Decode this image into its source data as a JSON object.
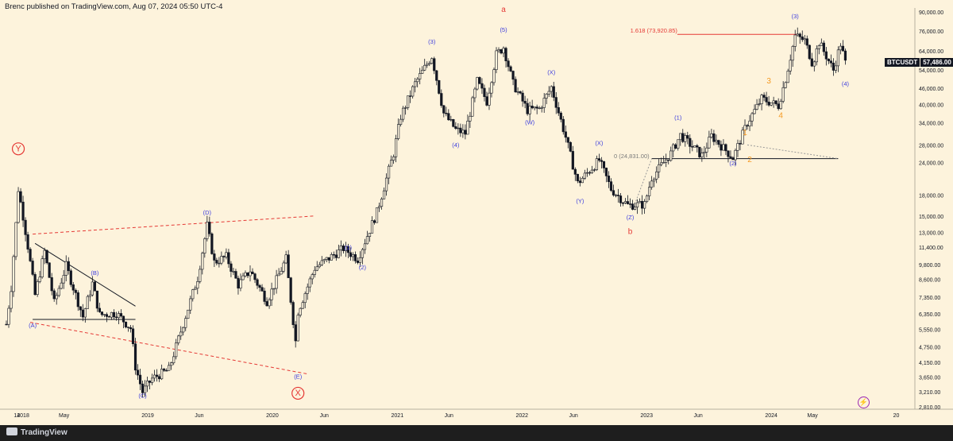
{
  "header": {
    "text": "Brenc published on TradingView.com, Aug 07, 2024 05:50 UTC-4"
  },
  "footer": {
    "brand": "TradingView"
  },
  "ticker": {
    "symbol": "BTCUSDT",
    "price": "57,486.00"
  },
  "colors": {
    "background": "#fdf3dc",
    "candle": "#131722",
    "wave_purple": "#3d3dde",
    "wave_red": "#e53935",
    "wave_orange": "#f59a23",
    "fib_line": "#e53935"
  },
  "chart_data": {
    "type": "candlestick",
    "title": "",
    "scale": "log",
    "ylim": [
      2810,
      90000
    ],
    "y_ticks": [
      "90,000.00",
      "76,000.00",
      "64,000.00",
      "54,000.00",
      "46,000.00",
      "40,000.00",
      "34,000.00",
      "28,000.00",
      "24,000.00",
      "18,000.00",
      "15,000.00",
      "13,000.00",
      "11,400.00",
      "9,800.00",
      "8,600.00",
      "7,350.00",
      "6,350.00",
      "5,550.00",
      "4,750.00",
      "4,150.00",
      "3,650.00",
      "3,210.00",
      "2,810.00"
    ],
    "y_tick_values": [
      90000,
      76000,
      64000,
      54000,
      46000,
      40000,
      34000,
      28000,
      24000,
      18000,
      15000,
      13000,
      11400,
      9800,
      8600,
      7350,
      6350,
      5550,
      4750,
      4150,
      3650,
      3210,
      2810
    ],
    "x_ticks": [
      "14",
      "2018",
      "May",
      "2019",
      "Jun",
      "2020",
      "Jun",
      "2021",
      "Jun",
      "2022",
      "Jun",
      "2023",
      "Jun",
      "2024",
      "May",
      "20"
    ],
    "x_tick_dates": [
      "2017-12-14",
      "2018-01-01",
      "2018-05-01",
      "2019-01-01",
      "2019-06-01",
      "2020-01-01",
      "2020-06-01",
      "2021-01-01",
      "2021-06-01",
      "2022-01-01",
      "2022-06-01",
      "2023-01-01",
      "2023-06-01",
      "2024-01-01",
      "2024-05-01",
      "2025-01-01"
    ],
    "xlim": [
      "2017-11-13",
      "2025-02-20"
    ],
    "series": [
      {
        "type": "weekly-candles (approximate price path, weekly closes)",
        "points": [
          [
            "2017-11-13",
            5800
          ],
          [
            "2017-11-27",
            8000
          ],
          [
            "2017-12-11",
            14000
          ],
          [
            "2017-12-18",
            19000
          ],
          [
            "2018-01-01",
            15000
          ],
          [
            "2018-01-15",
            11500
          ],
          [
            "2018-02-05",
            7500
          ],
          [
            "2018-03-05",
            11000
          ],
          [
            "2018-04-02",
            7000
          ],
          [
            "2018-05-07",
            9700
          ],
          [
            "2018-06-25",
            6200
          ],
          [
            "2018-07-23",
            8300
          ],
          [
            "2018-08-13",
            6300
          ],
          [
            "2018-10-01",
            6400
          ],
          [
            "2018-11-12",
            5600
          ],
          [
            "2018-11-26",
            4000
          ],
          [
            "2018-12-17",
            3200
          ],
          [
            "2019-01-14",
            3600
          ],
          [
            "2019-03-04",
            3900
          ],
          [
            "2019-04-01",
            5100
          ],
          [
            "2019-05-27",
            8700
          ],
          [
            "2019-06-24",
            13800
          ],
          [
            "2019-07-15",
            10000
          ],
          [
            "2019-08-19",
            10500
          ],
          [
            "2019-09-23",
            8200
          ],
          [
            "2019-10-28",
            9300
          ],
          [
            "2019-12-16",
            7100
          ],
          [
            "2020-02-10",
            10300
          ],
          [
            "2020-03-09",
            5000
          ],
          [
            "2020-03-16",
            6500
          ],
          [
            "2020-05-04",
            9500
          ],
          [
            "2020-07-27",
            11300
          ],
          [
            "2020-09-07",
            10300
          ],
          [
            "2020-11-02",
            15500
          ],
          [
            "2020-12-21",
            26000
          ],
          [
            "2021-01-11",
            36000
          ],
          [
            "2021-02-22",
            48000
          ],
          [
            "2021-04-12",
            61000
          ],
          [
            "2021-05-17",
            37000
          ],
          [
            "2021-06-21",
            32000
          ],
          [
            "2021-07-19",
            31000
          ],
          [
            "2021-08-23",
            49000
          ],
          [
            "2021-09-20",
            41000
          ],
          [
            "2021-10-18",
            62000
          ],
          [
            "2021-11-08",
            66000
          ],
          [
            "2021-12-06",
            48000
          ],
          [
            "2022-01-17",
            38000
          ],
          [
            "2022-02-21",
            38500
          ],
          [
            "2022-03-28",
            46500
          ],
          [
            "2022-05-09",
            30000
          ],
          [
            "2022-06-13",
            20000
          ],
          [
            "2022-08-15",
            24500
          ],
          [
            "2022-09-19",
            19000
          ],
          [
            "2022-11-07",
            16500
          ],
          [
            "2022-12-26",
            16600
          ],
          [
            "2023-01-16",
            21000
          ],
          [
            "2023-03-13",
            26000
          ],
          [
            "2023-04-10",
            30500
          ],
          [
            "2023-06-12",
            25500
          ],
          [
            "2023-07-10",
            30300
          ],
          [
            "2023-09-11",
            25000
          ],
          [
            "2023-10-23",
            34000
          ],
          [
            "2023-12-04",
            42000
          ],
          [
            "2024-01-22",
            39500
          ],
          [
            "2024-02-12",
            50000
          ],
          [
            "2024-03-11",
            73000
          ],
          [
            "2024-04-08",
            70000
          ],
          [
            "2024-05-01",
            57000
          ],
          [
            "2024-05-20",
            69000
          ],
          [
            "2024-07-01",
            54000
          ],
          [
            "2024-07-22",
            68000
          ],
          [
            "2024-08-05",
            57486
          ]
        ]
      }
    ],
    "annotations": [
      {
        "text": "Y",
        "date": "2017-12-18",
        "price": 26500,
        "color": "#e53935",
        "circle": true
      },
      {
        "text": "X",
        "date": "2020-03-16",
        "price": 3100,
        "color": "#e53935",
        "circle": true
      },
      {
        "text": "a",
        "date": "2021-11-08",
        "price": 90000,
        "color": "#e53935"
      },
      {
        "text": "b",
        "date": "2022-11-14",
        "price": 12800,
        "color": "#e53935"
      },
      {
        "text": "(A)",
        "date": "2018-01-29",
        "price": 5650,
        "color": "#3d3dde"
      },
      {
        "text": "(B)",
        "date": "2018-07-30",
        "price": 8950,
        "color": "#3d3dde"
      },
      {
        "text": "(C)",
        "date": "2018-12-17",
        "price": 3050,
        "color": "#3d3dde"
      },
      {
        "text": "(D)",
        "date": "2019-06-24",
        "price": 15200,
        "color": "#3d3dde"
      },
      {
        "text": "(E)",
        "date": "2020-03-16",
        "price": 3600,
        "color": "#3d3dde"
      },
      {
        "text": "(1)",
        "date": "2020-08-10",
        "price": 11200,
        "color": "#3d3dde"
      },
      {
        "text": "(2)",
        "date": "2020-09-21",
        "price": 9400,
        "color": "#3d3dde"
      },
      {
        "text": "(3)",
        "date": "2021-04-12",
        "price": 68000,
        "color": "#3d3dde"
      },
      {
        "text": "(4)",
        "date": "2021-06-21",
        "price": 27500,
        "color": "#3d3dde"
      },
      {
        "text": "(5)",
        "date": "2021-11-08",
        "price": 75500,
        "color": "#3d3dde"
      },
      {
        "text": "(W)",
        "date": "2022-01-24",
        "price": 33500,
        "color": "#3d3dde"
      },
      {
        "text": "(X)",
        "date": "2022-03-28",
        "price": 52000,
        "color": "#3d3dde"
      },
      {
        "text": "(Y)",
        "date": "2022-06-20",
        "price": 16800,
        "color": "#3d3dde"
      },
      {
        "text": "(X)",
        "date": "2022-08-15",
        "price": 28000,
        "color": "#3d3dde"
      },
      {
        "text": "(Z)",
        "date": "2022-11-14",
        "price": 14600,
        "color": "#3d3dde"
      },
      {
        "text": "(1)",
        "date": "2023-04-03",
        "price": 35000,
        "color": "#3d3dde"
      },
      {
        "text": "(2)",
        "date": "2023-09-11",
        "price": 23400,
        "color": "#3d3dde"
      },
      {
        "text": "(3)",
        "date": "2024-03-11",
        "price": 85000,
        "color": "#3d3dde"
      },
      {
        "text": "(4)",
        "date": "2024-08-05",
        "price": 47000,
        "color": "#3d3dde"
      },
      {
        "text": "1",
        "date": "2023-10-16",
        "price": 30500,
        "color": "#f59a23"
      },
      {
        "text": "2",
        "date": "2023-10-30",
        "price": 24100,
        "color": "#f59a23"
      },
      {
        "text": "3",
        "date": "2023-12-25",
        "price": 48000,
        "color": "#f59a23"
      },
      {
        "text": "4",
        "date": "2024-01-29",
        "price": 35500,
        "color": "#f59a23"
      },
      {
        "text": "1.618 (73,920.85)",
        "date": "2023-04-01",
        "price": 75200,
        "color": "#e53935"
      },
      {
        "text": "0 (24,831.00)",
        "date": "2023-01-09",
        "price": 24900,
        "color": "#7a7a7a"
      }
    ],
    "lines": [
      {
        "name": "triangle-upper",
        "from": [
          "2018-01-29",
          12800
        ],
        "to": [
          "2020-05-01",
          15000
        ],
        "style": "dashed",
        "color": "#e53935"
      },
      {
        "name": "triangle-lower",
        "from": [
          "2018-01-22",
          5900
        ],
        "to": [
          "2020-04-13",
          3750
        ],
        "style": "dashed",
        "color": "#e53935"
      },
      {
        "name": "pennant-top",
        "from": [
          "2018-02-05",
          11800
        ],
        "to": [
          "2018-11-26",
          6800
        ],
        "style": "solid",
        "color": "#131722"
      },
      {
        "name": "pennant-bottom",
        "from": [
          "2018-01-29",
          6050
        ],
        "to": [
          "2018-11-26",
          6050
        ],
        "style": "solid",
        "color": "#131722"
      },
      {
        "name": "fib-1618",
        "from": [
          "2023-04-01",
          73920
        ],
        "to": [
          "2024-03-18",
          73920
        ],
        "style": "solid",
        "color": "#e53935"
      },
      {
        "name": "fib-0",
        "from": [
          "2023-01-16",
          24831
        ],
        "to": [
          "2024-07-15",
          24831
        ],
        "style": "solid",
        "color": "#131722"
      },
      {
        "name": "fib-connector",
        "from": [
          "2022-11-21",
          15800
        ],
        "to": [
          "2023-01-16",
          24831
        ],
        "style": "dotted",
        "color": "#999999"
      },
      {
        "name": "fib-connector-2",
        "from": [
          "2023-10-23",
          28000
        ],
        "to": [
          "2024-07-15",
          24831
        ],
        "style": "dotted",
        "color": "#999999"
      }
    ]
  }
}
